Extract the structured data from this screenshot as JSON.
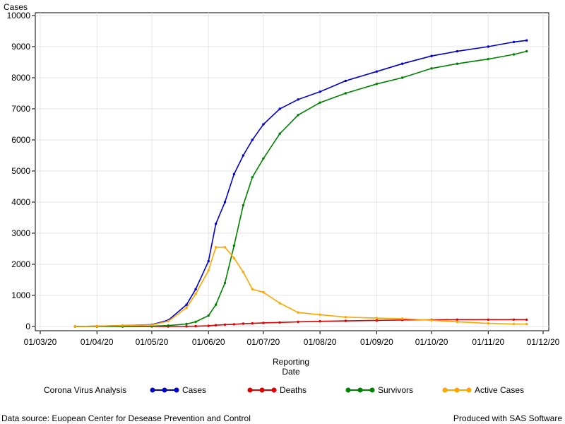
{
  "chart_data": {
    "type": "line",
    "ylabel": "Cases",
    "xlabel_lines": [
      "Reporting",
      "Date"
    ],
    "ylim": [
      0,
      10000
    ],
    "yticks": [
      0,
      1000,
      2000,
      3000,
      4000,
      5000,
      6000,
      7000,
      8000,
      9000,
      10000
    ],
    "xticks": [
      "01/03/20",
      "01/04/20",
      "01/05/20",
      "01/06/20",
      "01/07/20",
      "01/08/20",
      "01/09/20",
      "01/10/20",
      "01/11/20",
      "01/12/20"
    ],
    "grid": true,
    "legend_title": "Corona Virus Analysis",
    "legend_position": "bottom",
    "x": [
      "2020-03-20",
      "2020-04-01",
      "2020-04-15",
      "2020-05-01",
      "2020-05-10",
      "2020-05-20",
      "2020-05-25",
      "2020-06-01",
      "2020-06-05",
      "2020-06-10",
      "2020-06-15",
      "2020-06-20",
      "2020-06-25",
      "2020-07-01",
      "2020-07-10",
      "2020-07-20",
      "2020-08-01",
      "2020-08-15",
      "2020-09-01",
      "2020-09-15",
      "2020-10-01",
      "2020-10-15",
      "2020-11-01",
      "2020-11-15",
      "2020-11-22"
    ],
    "series": [
      {
        "name": "Cases",
        "color": "#0000cc",
        "values": [
          0,
          10,
          30,
          60,
          200,
          700,
          1200,
          2100,
          3300,
          4000,
          4900,
          5500,
          6000,
          6500,
          7000,
          7300,
          7550,
          7900,
          8200,
          8450,
          8700,
          8850,
          9000,
          9150,
          9200
        ]
      },
      {
        "name": "Deaths",
        "color": "#dd0000",
        "values": [
          0,
          0,
          0,
          0,
          0,
          5,
          10,
          20,
          40,
          60,
          70,
          90,
          100,
          115,
          130,
          150,
          165,
          180,
          195,
          210,
          215,
          220,
          220,
          220,
          220
        ]
      },
      {
        "name": "Survivors",
        "color": "#008000",
        "values": [
          0,
          0,
          0,
          10,
          30,
          80,
          150,
          350,
          700,
          1400,
          2600,
          3900,
          4800,
          5400,
          6200,
          6800,
          7200,
          7500,
          7800,
          8000,
          8300,
          8450,
          8600,
          8750,
          8850
        ]
      },
      {
        "name": "Active Cases",
        "color": "#ffa500",
        "values": [
          0,
          10,
          30,
          50,
          170,
          600,
          1050,
          1800,
          2550,
          2550,
          2200,
          1750,
          1200,
          1100,
          750,
          450,
          380,
          300,
          270,
          250,
          200,
          150,
          100,
          80,
          80
        ]
      }
    ]
  },
  "footer": {
    "source": "Data source: Euopean Center for Desease Prevention and Control",
    "produced": "Produced with SAS Software"
  }
}
